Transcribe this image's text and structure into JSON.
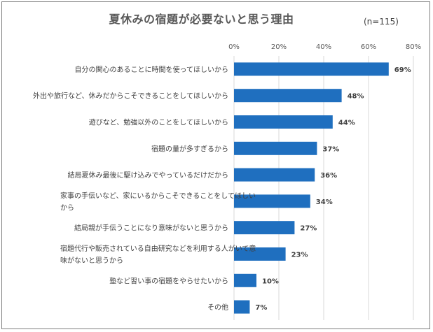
{
  "chart_data": {
    "type": "bar",
    "orientation": "horizontal",
    "title": "夏休みの宿題が必要ないと思う理由",
    "subtitle": "(n=115)",
    "bar_color": "#1f6fbf",
    "xlim": [
      0,
      80
    ],
    "x_ticks": [
      "0%",
      "20%",
      "40%",
      "60%",
      "80%"
    ],
    "x_tick_values": [
      0,
      20,
      40,
      60,
      80
    ],
    "grid": true,
    "categories": [
      [
        "自分の関心のあることに時間を使ってほしいから"
      ],
      [
        "外出や旅行など、休みだからこそできることをしてほしいから"
      ],
      [
        "遊びなど、勉強以外のことをしてほしいから"
      ],
      [
        "宿題の量が多すぎるから"
      ],
      [
        "結局夏休み最後に駆け込みでやっているだけだから"
      ],
      [
        "家事の手伝いなど、家にいるからこそできることをしてほしい",
        "から"
      ],
      [
        "結局親が手伝うことになり意味がないと思うから"
      ],
      [
        "宿題代行や販売されている自由研究などを利用する人がいて意",
        "味がないと思うから"
      ],
      [
        "塾など習い事の宿題をやらせたいから"
      ],
      [
        "その他"
      ]
    ],
    "values": [
      69,
      48,
      44,
      37,
      36,
      34,
      27,
      23,
      10,
      7
    ],
    "value_labels": [
      "69%",
      "48%",
      "44%",
      "37%",
      "36%",
      "34%",
      "27%",
      "23%",
      "10%",
      "7%"
    ]
  }
}
